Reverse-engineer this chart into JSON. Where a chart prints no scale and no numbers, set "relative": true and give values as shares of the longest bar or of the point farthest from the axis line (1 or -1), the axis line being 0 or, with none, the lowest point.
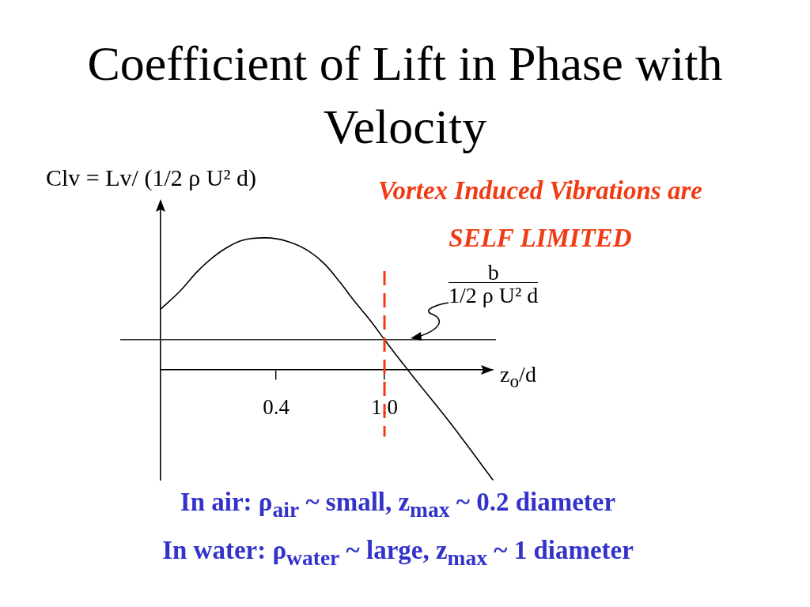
{
  "chart_data": {
    "type": "line",
    "title": "Coefficient of Lift in Phase with Velocity",
    "ylabel": "Clv = Lv/ (1/2 ρ U² d)",
    "xlabel": "z$_{o}$/d",
    "x": [
      -0.24,
      -0.13,
      -0.04,
      0.03,
      0.12,
      0.21,
      0.34,
      0.47,
      0.58,
      0.67,
      0.75,
      0.84,
      0.93,
      1.0,
      1.13,
      1.37,
      1.6
    ],
    "series": [
      {
        "color": "#000000",
        "values": [
          0.46,
          0.6,
          0.74,
          0.83,
          0.92,
          0.98,
          1.0,
          0.97,
          0.9,
          0.8,
          0.67,
          0.51,
          0.36,
          0.23,
          0.0,
          -0.41,
          -0.83
        ]
      }
    ],
    "relative": true,
    "xlim": [
      -0.24,
      1.6
    ],
    "xticks": [
      0.4,
      {
        "value": 1.0,
        "label": "1.0"
      }
    ],
    "tick_labels": "x",
    "marker": "none",
    "legend": false,
    "ref_lines": [
      {
        "axis": "y",
        "value": 0.23,
        "label": "b\n1/2 ρ U² d",
        "color": "#333333"
      },
      {
        "axis": "x",
        "value": 1.0,
        "color": "#f03c14",
        "line_style": "dashed"
      }
    ],
    "annotations": [
      "Vortex Induced Vibrations are",
      "SELF LIMITED",
      "In air: ρ$_{air}$ ~ small, z$_{max}$ ~ 0.2 diameter",
      "In water: ρ$_{water}$ ~ large, z$_{max}$ ~ 1 diameter"
    ]
  }
}
